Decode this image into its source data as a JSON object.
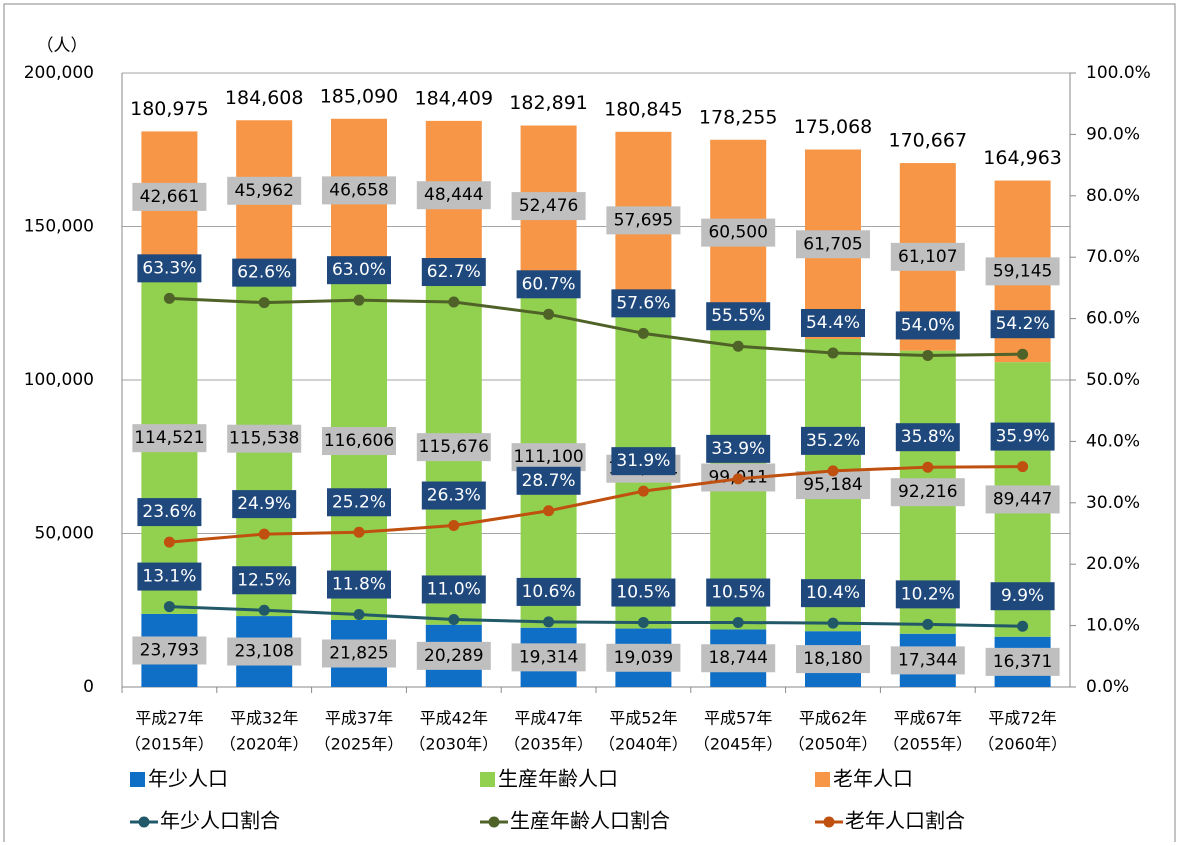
{
  "chart_data": {
    "type": "bar",
    "y_unit": "（人）",
    "categories": [
      [
        "平成27年",
        "（2015年）"
      ],
      [
        "平成32年",
        "（2020年）"
      ],
      [
        "平成37年",
        "（2025年）"
      ],
      [
        "平成42年",
        "（2030年）"
      ],
      [
        "平成47年",
        "（2035年）"
      ],
      [
        "平成52年",
        "（2040年）"
      ],
      [
        "平成57年",
        "（2045年）"
      ],
      [
        "平成62年",
        "（2050年）"
      ],
      [
        "平成67年",
        "（2055年）"
      ],
      [
        "平成72年",
        "（2060年）"
      ]
    ],
    "ylim": [
      0,
      200000
    ],
    "yticks": [
      0,
      {
        "value": 50000,
        "label": "50,000"
      },
      {
        "value": 100000,
        "label": "100,000"
      },
      {
        "value": 150000,
        "label": "150,000"
      },
      {
        "value": 200000,
        "label": "200,000"
      }
    ],
    "y2lim": [
      0,
      100
    ],
    "y2ticks": [
      {
        "value": 0,
        "label": "0.0%"
      },
      {
        "value": 10,
        "label": "10.0%"
      },
      {
        "value": 20,
        "label": "20.0%"
      },
      {
        "value": 30,
        "label": "30.0%"
      },
      {
        "value": 40,
        "label": "40.0%"
      },
      {
        "value": 50,
        "label": "50.0%"
      },
      {
        "value": 60,
        "label": "60.0%"
      },
      {
        "value": 70,
        "label": "70.0%"
      },
      {
        "value": 80,
        "label": "80.0%"
      },
      {
        "value": 90,
        "label": "90.0%"
      },
      {
        "value": 100,
        "label": "100.0%"
      }
    ],
    "grid": true,
    "series": [
      {
        "name": "年少人口",
        "type": "bar",
        "color": "#0f6fc6",
        "values": [
          23793,
          23108,
          21825,
          20289,
          19314,
          19039,
          18744,
          18180,
          17344,
          16371
        ],
        "value_labels": [
          "23,793",
          "23,108",
          "21,825",
          "20,289",
          "19,314",
          "19,039",
          "18,744",
          "18,180",
          "17,344",
          "16,371"
        ]
      },
      {
        "name": "生産年齢人口",
        "type": "bar",
        "color": "#92d050",
        "values": [
          114521,
          115538,
          116606,
          115676,
          111100,
          104111,
          99011,
          95184,
          92216,
          89447
        ],
        "value_labels": [
          "114,521",
          "115,538",
          "116,606",
          "115,676",
          "111,100",
          "104,111",
          "99,011",
          "95,184",
          "92,216",
          "89,447"
        ]
      },
      {
        "name": "老年人口",
        "type": "bar",
        "color": "#f79646",
        "values": [
          42661,
          45962,
          46658,
          48444,
          52476,
          57695,
          60500,
          61705,
          61107,
          59145
        ],
        "value_labels": [
          "42,661",
          "45,962",
          "46,658",
          "48,444",
          "52,476",
          "57,695",
          "60,500",
          "61,705",
          "61,107",
          "59,145"
        ]
      },
      {
        "name": "年少人口割合",
        "type": "line",
        "axis": "y2",
        "color": "#215968",
        "values": [
          13.1,
          12.5,
          11.8,
          11.0,
          10.6,
          10.5,
          10.5,
          10.4,
          10.2,
          9.9
        ],
        "value_labels": [
          "13.1%",
          "12.5%",
          "11.8%",
          "11.0%",
          "10.6%",
          "10.5%",
          "10.5%",
          "10.4%",
          "10.2%",
          "9.9%"
        ]
      },
      {
        "name": "生産年齢人口割合",
        "type": "line",
        "axis": "y2",
        "color": "#4f6228",
        "values": [
          63.3,
          62.6,
          63.0,
          62.7,
          60.7,
          57.6,
          55.5,
          54.4,
          54.0,
          54.2
        ],
        "value_labels": [
          "63.3%",
          "62.6%",
          "63.0%",
          "62.7%",
          "60.7%",
          "57.6%",
          "55.5%",
          "54.4%",
          "54.0%",
          "54.2%"
        ]
      },
      {
        "name": "老年人口割合",
        "type": "line",
        "axis": "y2",
        "color": "#c0500f",
        "values": [
          23.6,
          24.9,
          25.2,
          26.3,
          28.7,
          31.9,
          33.9,
          35.2,
          35.8,
          35.9
        ],
        "value_labels": [
          "23.6%",
          "24.9%",
          "25.2%",
          "26.3%",
          "28.7%",
          "31.9%",
          "33.9%",
          "35.2%",
          "35.8%",
          "35.9%"
        ]
      }
    ],
    "totals": {
      "values": [
        180975,
        184608,
        185090,
        184409,
        182891,
        180845,
        178255,
        175068,
        170667,
        164963
      ],
      "value_labels": [
        "180,975",
        "184,608",
        "185,090",
        "184,409",
        "182,891",
        "180,845",
        "178,255",
        "175,068",
        "170,667",
        "164,963"
      ]
    }
  }
}
